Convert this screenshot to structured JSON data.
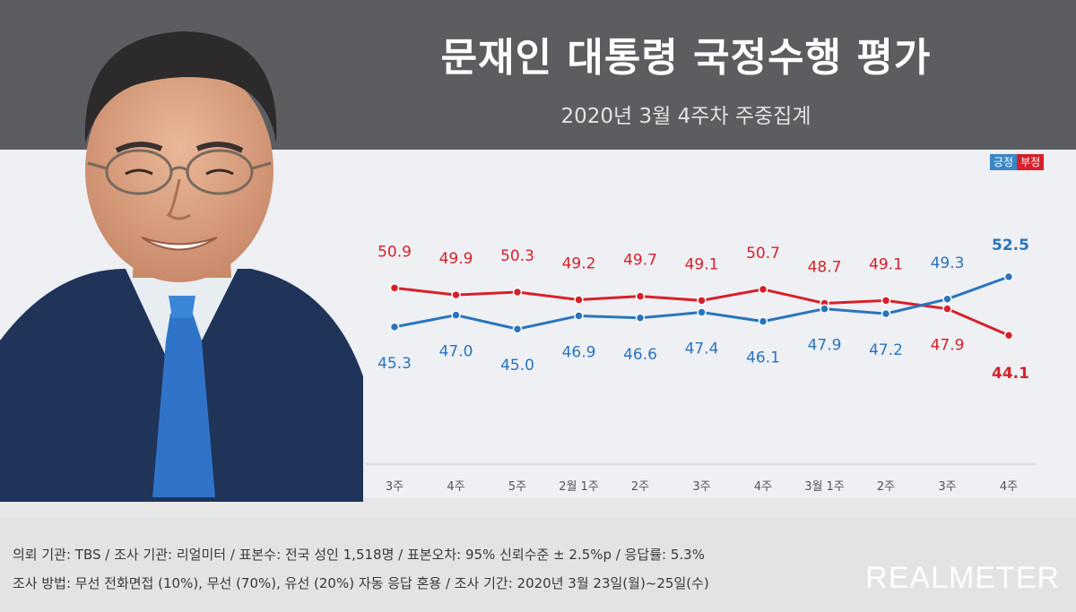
{
  "title": "문재인 대통령 국정수행 평가",
  "subtitle": "2020년 3월 4주차 주중집계",
  "legend": {
    "positive": "긍정",
    "negative": "부정"
  },
  "colors": {
    "positive": "#2a74bd",
    "negative": "#d7202a",
    "header": "#5b5d61"
  },
  "chart_data": {
    "type": "line",
    "categories": [
      "3주",
      "4주",
      "5주",
      "2월 1주",
      "2주",
      "3주",
      "4주",
      "3월 1주",
      "2주",
      "3주",
      "4주"
    ],
    "series": [
      {
        "name": "긍정",
        "values": [
          45.3,
          47.0,
          45.0,
          46.9,
          46.6,
          47.4,
          46.1,
          47.9,
          47.2,
          49.3,
          52.5
        ]
      },
      {
        "name": "부정",
        "values": [
          50.9,
          49.9,
          50.3,
          49.2,
          49.7,
          49.1,
          50.7,
          48.7,
          49.1,
          47.9,
          44.1
        ]
      }
    ],
    "ylim": [
      40,
      56
    ],
    "grid": false,
    "legend_position": "top-right"
  },
  "footer": {
    "line1": "의뢰 기관: TBS / 조사 기관: 리얼미터 / 표본수: 전국 성인 1,518명 / 표본오차: 95% 신뢰수준 ± 2.5%p / 응답률: 5.3%",
    "line2": "조사 방법: 무선 전화면접 (10%), 무선 (70%), 유선 (20%) 자동 응답 혼용 / 조사 기간: 2020년 3월 23일(월)~25일(수)",
    "brand": "REALMETER"
  }
}
